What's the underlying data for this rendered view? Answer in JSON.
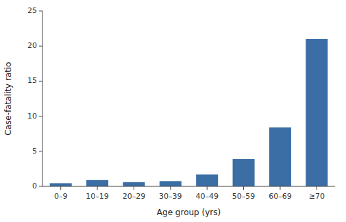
{
  "chart_data": {
    "type": "bar",
    "categories": [
      "0–9",
      "10–19",
      "20–29",
      "30–39",
      "40–49",
      "50–59",
      "60–69",
      "≥70"
    ],
    "values": [
      0.45,
      0.9,
      0.6,
      0.75,
      1.7,
      3.9,
      8.4,
      21.0
    ],
    "color": "#3a6ea5",
    "xlabel": "Age group (yrs)",
    "ylabel": "Case-fatality ratio",
    "ylim": [
      0,
      25
    ],
    "yticks": [
      0,
      5,
      10,
      15,
      20,
      25
    ],
    "grid": false
  }
}
